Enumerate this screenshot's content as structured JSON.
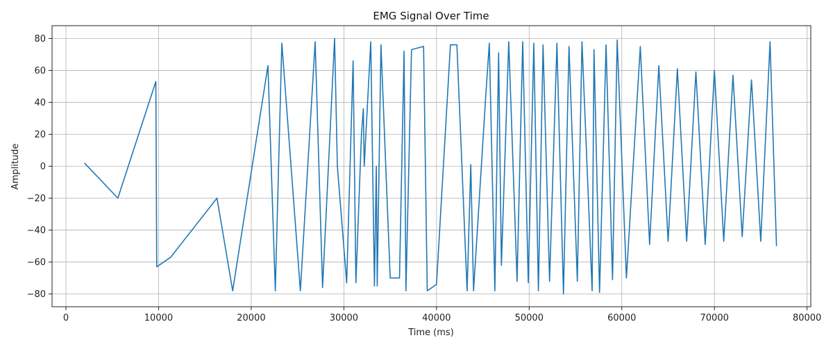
{
  "chart_data": {
    "type": "line",
    "title": "EMG Signal Over Time",
    "xlabel": "Time (ms)",
    "ylabel": "Amplitude",
    "xlim": [
      -1500,
      80400
    ],
    "ylim": [
      -88,
      88
    ],
    "xticks": [
      0,
      10000,
      20000,
      30000,
      40000,
      50000,
      60000,
      70000,
      80000
    ],
    "xtick_labels": [
      "0",
      "10000",
      "20000",
      "30000",
      "40000",
      "50000",
      "60000",
      "70000",
      "80000"
    ],
    "yticks": [
      -80,
      -60,
      -40,
      -20,
      0,
      20,
      40,
      60,
      80
    ],
    "ytick_labels": [
      "−80",
      "−60",
      "−40",
      "−20",
      "0",
      "20",
      "40",
      "60",
      "80"
    ],
    "grid": true,
    "series": [
      {
        "color": "#1f77b4",
        "x": [
          2000,
          5600,
          9700,
          9800,
          11300,
          16300,
          18000,
          21800,
          22600,
          23300,
          25300,
          26900,
          27700,
          29000,
          29300,
          30300,
          31000,
          31300,
          31900,
          32100,
          32200,
          32900,
          33300,
          33500,
          33600,
          34000,
          35000,
          36000,
          36500,
          36700,
          37300,
          38600,
          39000,
          40000,
          41500,
          42200,
          43300,
          43700,
          44000,
          45300,
          45700,
          46300,
          46700,
          47000,
          47800,
          48700,
          49300,
          49900,
          50500,
          51000,
          51500,
          52200,
          53000,
          53700,
          54300,
          55200,
          55700,
          56800,
          57000,
          57600,
          58300,
          59000,
          59500,
          60500,
          62000,
          63000,
          64000,
          65000,
          66000,
          67000,
          68000,
          69000,
          70000,
          71000,
          72000,
          73000,
          74000,
          75000,
          76000,
          76700
        ],
        "y": [
          2,
          -20,
          53,
          -63,
          -57,
          -20,
          -78,
          63,
          -78,
          77,
          -78,
          78,
          -76,
          80,
          0,
          -73,
          66,
          -73,
          20,
          36,
          0,
          78,
          -75,
          0,
          -75,
          76,
          -70,
          -70,
          72,
          -78,
          73,
          75,
          -78,
          -74,
          76,
          76,
          -78,
          1,
          -78,
          43,
          77,
          -78,
          71,
          -62,
          78,
          -72,
          78,
          -73,
          77,
          -78,
          76,
          -72,
          77,
          -80,
          75,
          -72,
          78,
          -78,
          73,
          -79,
          76,
          -71,
          79,
          -70,
          75,
          -49,
          63,
          -47,
          61,
          -47,
          59,
          -49,
          60,
          -47,
          57,
          -44,
          54,
          -47,
          78,
          -50
        ]
      }
    ]
  }
}
